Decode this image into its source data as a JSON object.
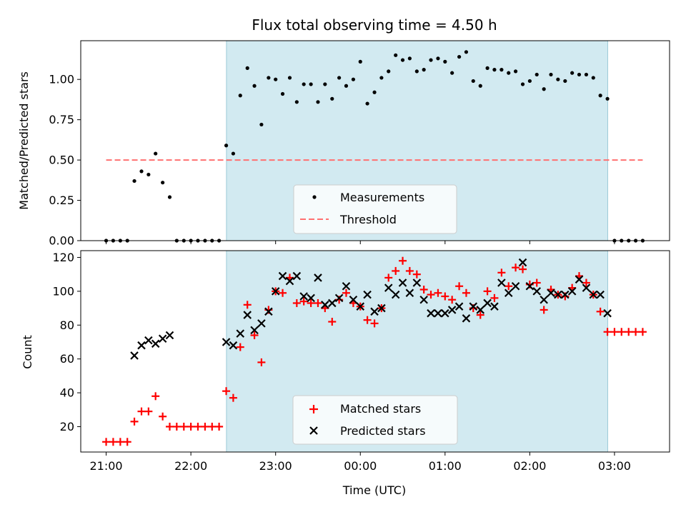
{
  "chart_data": {
    "title": "Flux total observing time = 4.50 h",
    "xlabel": "Time (UTC)",
    "x_tick_labels": [
      "21:00",
      "22:00",
      "23:00",
      "00:00",
      "01:00",
      "02:00",
      "03:00"
    ],
    "x_tick_hours": [
      21,
      22,
      23,
      24,
      25,
      26,
      27
    ],
    "xlim": [
      20.7,
      27.65
    ],
    "shaded_interval": {
      "start": 22.42,
      "end": 26.92,
      "color": "#add8e6"
    },
    "panels": [
      {
        "type": "scatter",
        "ylabel": "Matched/Predicted stars",
        "ylim": [
          0,
          1.24
        ],
        "y_ticks": [
          0.0,
          0.25,
          0.5,
          0.75,
          1.0
        ],
        "y_tick_labels": [
          "0.00",
          "0.25",
          "0.50",
          "0.75",
          "1.00"
        ],
        "legend_position": "lower-center",
        "series": [
          {
            "name": "Measurements",
            "marker": "dot",
            "color": "#000000",
            "x": [
              21.0,
              21.083,
              21.167,
              21.25,
              21.333,
              21.417,
              21.5,
              21.583,
              21.667,
              21.75,
              21.833,
              21.917,
              22.0,
              22.083,
              22.167,
              22.25,
              22.333,
              22.417,
              22.5,
              22.583,
              22.667,
              22.75,
              22.833,
              22.917,
              23.0,
              23.083,
              23.167,
              23.25,
              23.333,
              23.417,
              23.5,
              23.583,
              23.667,
              23.75,
              23.833,
              23.917,
              24.0,
              24.083,
              24.167,
              24.25,
              24.333,
              24.417,
              24.5,
              24.583,
              24.667,
              24.75,
              24.833,
              24.917,
              25.0,
              25.083,
              25.167,
              25.25,
              25.333,
              25.417,
              25.5,
              25.583,
              25.667,
              25.75,
              25.833,
              25.917,
              26.0,
              26.083,
              26.167,
              26.25,
              26.333,
              26.417,
              26.5,
              26.583,
              26.667,
              26.75,
              26.833,
              26.917,
              27.0,
              27.083,
              27.167,
              27.25,
              27.333
            ],
            "y": [
              0,
              0,
              0,
              0,
              0.37,
              0.43,
              0.41,
              0.54,
              0.36,
              0.27,
              0,
              0,
              0,
              0,
              0,
              0,
              0,
              0.59,
              0.54,
              0.9,
              1.07,
              0.96,
              0.72,
              1.01,
              1.0,
              0.91,
              1.01,
              0.86,
              0.97,
              0.97,
              0.86,
              0.97,
              0.88,
              1.01,
              0.96,
              1.0,
              1.11,
              0.85,
              0.92,
              1.01,
              1.05,
              1.15,
              1.12,
              1.13,
              1.05,
              1.06,
              1.12,
              1.13,
              1.11,
              1.04,
              1.14,
              1.17,
              0.99,
              0.96,
              1.07,
              1.06,
              1.06,
              1.04,
              1.05,
              0.97,
              0.99,
              1.03,
              0.94,
              1.03,
              1.0,
              0.99,
              1.04,
              1.03,
              1.03,
              1.01,
              0.9,
              0.88,
              0,
              0,
              0,
              0,
              0
            ]
          },
          {
            "name": "Threshold",
            "line": "dashed",
            "color": "#ff7070",
            "x": [
              21.0,
              27.333
            ],
            "y": [
              0.5,
              0.5
            ]
          }
        ]
      },
      {
        "type": "scatter",
        "ylabel": "Count",
        "ylim": [
          5,
          124
        ],
        "y_ticks": [
          20,
          40,
          60,
          80,
          100,
          120
        ],
        "y_tick_labels": [
          "20",
          "40",
          "60",
          "80",
          "100",
          "120"
        ],
        "legend_position": "lower-center",
        "series": [
          {
            "name": "Matched stars",
            "marker": "plus",
            "color": "#ff0000",
            "x": [
              21.0,
              21.083,
              21.167,
              21.25,
              21.333,
              21.417,
              21.5,
              21.583,
              21.667,
              21.75,
              21.833,
              21.917,
              22.0,
              22.083,
              22.167,
              22.25,
              22.333,
              22.417,
              22.5,
              22.583,
              22.667,
              22.75,
              22.833,
              22.917,
              23.0,
              23.083,
              23.167,
              23.25,
              23.333,
              23.417,
              23.5,
              23.583,
              23.667,
              23.75,
              23.833,
              23.917,
              24.0,
              24.083,
              24.167,
              24.25,
              24.333,
              24.417,
              24.5,
              24.583,
              24.667,
              24.75,
              24.833,
              24.917,
              25.0,
              25.083,
              25.167,
              25.25,
              25.333,
              25.417,
              25.5,
              25.583,
              25.667,
              25.75,
              25.833,
              25.917,
              26.0,
              26.083,
              26.167,
              26.25,
              26.333,
              26.417,
              26.5,
              26.583,
              26.667,
              26.75,
              26.833,
              26.917,
              27.0,
              27.083,
              27.167,
              27.25,
              27.333
            ],
            "y": [
              11,
              11,
              11,
              11,
              23,
              29,
              29,
              38,
              26,
              20,
              20,
              20,
              20,
              20,
              20,
              20,
              20,
              41,
              37,
              67,
              92,
              74,
              58,
              89,
              100,
              99,
              108,
              93,
              94,
              93,
              93,
              90,
              82,
              95,
              99,
              93,
              91,
              83,
              81,
              90,
              108,
              112,
              118,
              112,
              110,
              101,
              98,
              99,
              97,
              95,
              103,
              99,
              90,
              86,
              100,
              96,
              111,
              103,
              114,
              113,
              104,
              105,
              89,
              101,
              98,
              97,
              102,
              109,
              105,
              98,
              88,
              76,
              76,
              76,
              76,
              76,
              76
            ]
          },
          {
            "name": "Predicted stars",
            "marker": "x",
            "color": "#000000",
            "x": [
              21.333,
              21.417,
              21.5,
              21.583,
              21.667,
              21.75,
              22.417,
              22.5,
              22.583,
              22.667,
              22.75,
              22.833,
              22.917,
              23.0,
              23.083,
              23.167,
              23.25,
              23.333,
              23.417,
              23.5,
              23.583,
              23.667,
              23.75,
              23.833,
              23.917,
              24.0,
              24.083,
              24.167,
              24.25,
              24.333,
              24.417,
              24.5,
              24.583,
              24.667,
              24.75,
              24.833,
              24.917,
              25.0,
              25.083,
              25.167,
              25.25,
              25.333,
              25.417,
              25.5,
              25.583,
              25.667,
              25.75,
              25.833,
              25.917,
              26.0,
              26.083,
              26.167,
              26.25,
              26.333,
              26.417,
              26.5,
              26.583,
              26.667,
              26.75,
              26.833,
              26.917
            ],
            "y": [
              62,
              68,
              71,
              69,
              72,
              74,
              70,
              68,
              75,
              86,
              77,
              81,
              88,
              100,
              109,
              106,
              109,
              97,
              96,
              108,
              92,
              93,
              96,
              103,
              95,
              91,
              98,
              88,
              90,
              102,
              98,
              105,
              99,
              105,
              95,
              87,
              87,
              87,
              89,
              91,
              84,
              91,
              89,
              93,
              91,
              105,
              99,
              103,
              117,
              103,
              100,
              95,
              99,
              98,
              98,
              100,
              107,
              102,
              98,
              98,
              87
            ]
          }
        ]
      }
    ]
  }
}
